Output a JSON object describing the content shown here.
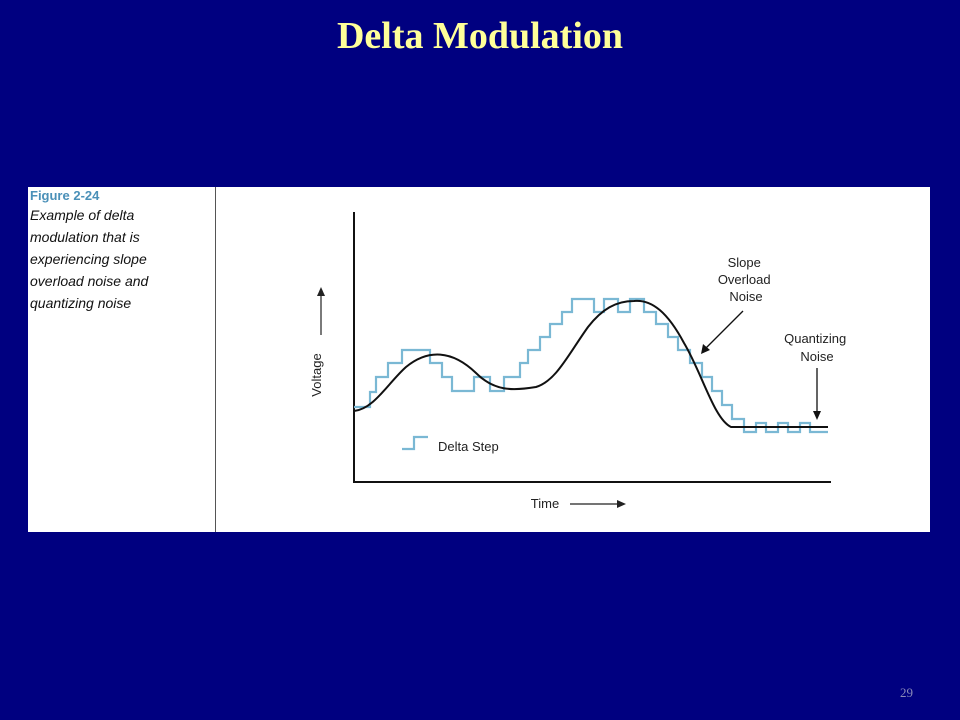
{
  "slide": {
    "title": "Delta Modulation",
    "number": "29"
  },
  "figure": {
    "label": "Figure 2-24",
    "caption_lines": [
      "Example of delta",
      "modulation that is",
      "experiencing slope",
      "overload noise and",
      "quantizing noise"
    ]
  },
  "diagram": {
    "y_axis_label": "Voltage",
    "x_axis_label": "Time",
    "legend_label": "Delta Step",
    "annotation_slope": [
      "Slope",
      "Overload",
      "Noise"
    ],
    "annotation_quantizing": [
      "Quantizing",
      "Noise"
    ],
    "colors": {
      "analog_signal": "#111111",
      "delta_steps": "#7ab8d4",
      "axes": "#111111"
    }
  }
}
